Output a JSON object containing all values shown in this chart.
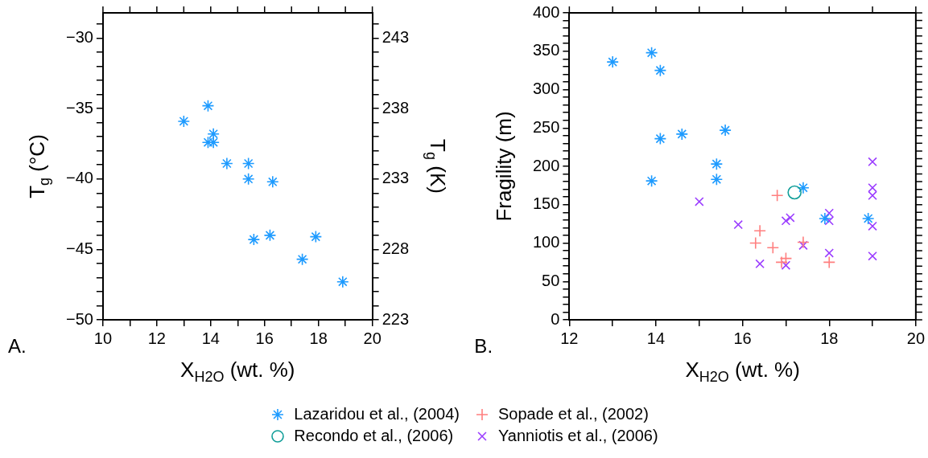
{
  "chart_data": [
    {
      "type": "scatter",
      "xlabel": "X$_{H2O}$ (wt. %)",
      "ylabel": "T$_{g}$ (°C)",
      "y2label": "T$_{g}$ (K)",
      "annotations": [
        "A."
      ],
      "legend": "bottom",
      "xlim": [
        10,
        20
      ],
      "xticks": [
        10,
        {
          "value": 11,
          "label": null
        },
        12,
        {
          "value": 13,
          "label": null
        },
        14,
        {
          "value": 15,
          "label": null
        },
        16,
        {
          "value": 17,
          "label": null
        },
        18,
        {
          "value": 19,
          "label": null
        },
        20
      ],
      "ylim": [
        -50,
        -28.2
      ],
      "yticks": [
        -50,
        {
          "value": -49,
          "label": null
        },
        {
          "value": -48,
          "label": null
        },
        {
          "value": -47,
          "label": null
        },
        {
          "value": -46,
          "label": null
        },
        -45,
        {
          "value": -44,
          "label": null
        },
        {
          "value": -43,
          "label": null
        },
        {
          "value": -42,
          "label": null
        },
        {
          "value": -41,
          "label": null
        },
        -40,
        {
          "value": -39,
          "label": null
        },
        {
          "value": -38,
          "label": null
        },
        {
          "value": -37,
          "label": null
        },
        {
          "value": -36,
          "label": null
        },
        -35,
        {
          "value": -34,
          "label": null
        },
        {
          "value": -33,
          "label": null
        },
        {
          "value": -32,
          "label": null
        },
        {
          "value": -31,
          "label": null
        },
        -30,
        {
          "value": -29,
          "label": null
        }
      ],
      "y2lim": [
        223,
        244.8
      ],
      "y2ticks": [
        223,
        {
          "value": 224,
          "label": null
        },
        {
          "value": 225,
          "label": null
        },
        {
          "value": 226,
          "label": null
        },
        {
          "value": 227,
          "label": null
        },
        228,
        {
          "value": 229,
          "label": null
        },
        {
          "value": 230,
          "label": null
        },
        {
          "value": 231,
          "label": null
        },
        {
          "value": 232,
          "label": null
        },
        233,
        {
          "value": 234,
          "label": null
        },
        {
          "value": 235,
          "label": null
        },
        {
          "value": 236,
          "label": null
        },
        {
          "value": 237,
          "label": null
        },
        238,
        {
          "value": 239,
          "label": null
        },
        {
          "value": 240,
          "label": null
        },
        {
          "value": 241,
          "label": null
        },
        {
          "value": 242,
          "label": null
        },
        243,
        {
          "value": 244,
          "label": null
        }
      ],
      "series": [
        {
          "name": "Lazaridou et al., (2004)",
          "color": "#1e9bff",
          "x": [
            13.0,
            13.9,
            14.1,
            13.9,
            14.1,
            14.6,
            15.4,
            15.4,
            16.3,
            15.6,
            16.2,
            17.9,
            17.4,
            18.9
          ],
          "values": [
            -35.9,
            -34.8,
            -36.8,
            -37.4,
            -37.4,
            -38.9,
            -38.9,
            -40.0,
            -40.2,
            -44.3,
            -44.0,
            -44.1,
            -45.7,
            -47.3
          ]
        }
      ]
    },
    {
      "type": "scatter",
      "xlabel": "X$_{H2O}$ (wt. %)",
      "ylabel": "Fragility (m)",
      "annotations": [
        "B."
      ],
      "legend": "bottom",
      "xlim": [
        12,
        20
      ],
      "xticks": [
        12,
        {
          "value": 13,
          "label": null
        },
        14,
        {
          "value": 15,
          "label": null
        },
        16,
        {
          "value": 17,
          "label": null
        },
        18,
        {
          "value": 19,
          "label": null
        },
        20
      ],
      "ylim": [
        0,
        400
      ],
      "yticks": [
        0,
        {
          "value": 10,
          "label": null
        },
        {
          "value": 20,
          "label": null
        },
        {
          "value": 30,
          "label": null
        },
        {
          "value": 40,
          "label": null
        },
        50,
        {
          "value": 60,
          "label": null
        },
        {
          "value": 70,
          "label": null
        },
        {
          "value": 80,
          "label": null
        },
        {
          "value": 90,
          "label": null
        },
        100,
        {
          "value": 110,
          "label": null
        },
        {
          "value": 120,
          "label": null
        },
        {
          "value": 130,
          "label": null
        },
        {
          "value": 140,
          "label": null
        },
        150,
        {
          "value": 160,
          "label": null
        },
        {
          "value": 170,
          "label": null
        },
        {
          "value": 180,
          "label": null
        },
        {
          "value": 190,
          "label": null
        },
        200,
        {
          "value": 210,
          "label": null
        },
        {
          "value": 220,
          "label": null
        },
        {
          "value": 230,
          "label": null
        },
        {
          "value": 240,
          "label": null
        },
        250,
        {
          "value": 260,
          "label": null
        },
        {
          "value": 270,
          "label": null
        },
        {
          "value": 280,
          "label": null
        },
        {
          "value": 290,
          "label": null
        },
        300,
        {
          "value": 310,
          "label": null
        },
        {
          "value": 320,
          "label": null
        },
        {
          "value": 330,
          "label": null
        },
        {
          "value": 340,
          "label": null
        },
        350,
        {
          "value": 360,
          "label": null
        },
        {
          "value": 370,
          "label": null
        },
        {
          "value": 380,
          "label": null
        },
        {
          "value": 390,
          "label": null
        },
        400
      ],
      "series": [
        {
          "name": "Lazaridou et al., (2004)",
          "color": "#1e9bff",
          "x": [
            13.0,
            13.9,
            14.1,
            14.1,
            14.6,
            15.6,
            15.4,
            15.4,
            13.9,
            17.4,
            17.9,
            18.9
          ],
          "values": [
            336,
            348,
            325,
            236,
            242,
            247,
            203,
            183,
            181,
            172,
            132,
            132
          ]
        },
        {
          "name": "Sopade et al., (2002)",
          "color": "#ff7f7f",
          "marker": "cross",
          "x": [
            16.8,
            16.4,
            16.3,
            16.7,
            16.9,
            17.0,
            17.4,
            18.0
          ],
          "values": [
            162,
            116,
            100,
            94,
            75,
            80,
            101,
            75
          ]
        },
        {
          "name": "Recondo et al., (2006)",
          "color": "#119e99",
          "marker": "circle",
          "x": [
            17.2
          ],
          "values": [
            166
          ]
        },
        {
          "name": "Yanniotis et al., (2006)",
          "color": "#9b3dff",
          "marker": "x",
          "x": [
            15.0,
            15.9,
            16.4,
            17.0,
            17.1,
            17.0,
            17.4,
            18.0,
            18.0,
            18.0,
            19.0,
            19.0,
            19.0,
            19.0,
            19.0
          ],
          "values": [
            154,
            124,
            73,
            129,
            133,
            71,
            97,
            139,
            129,
            87,
            206,
            172,
            162,
            122,
            83
          ]
        }
      ]
    }
  ]
}
